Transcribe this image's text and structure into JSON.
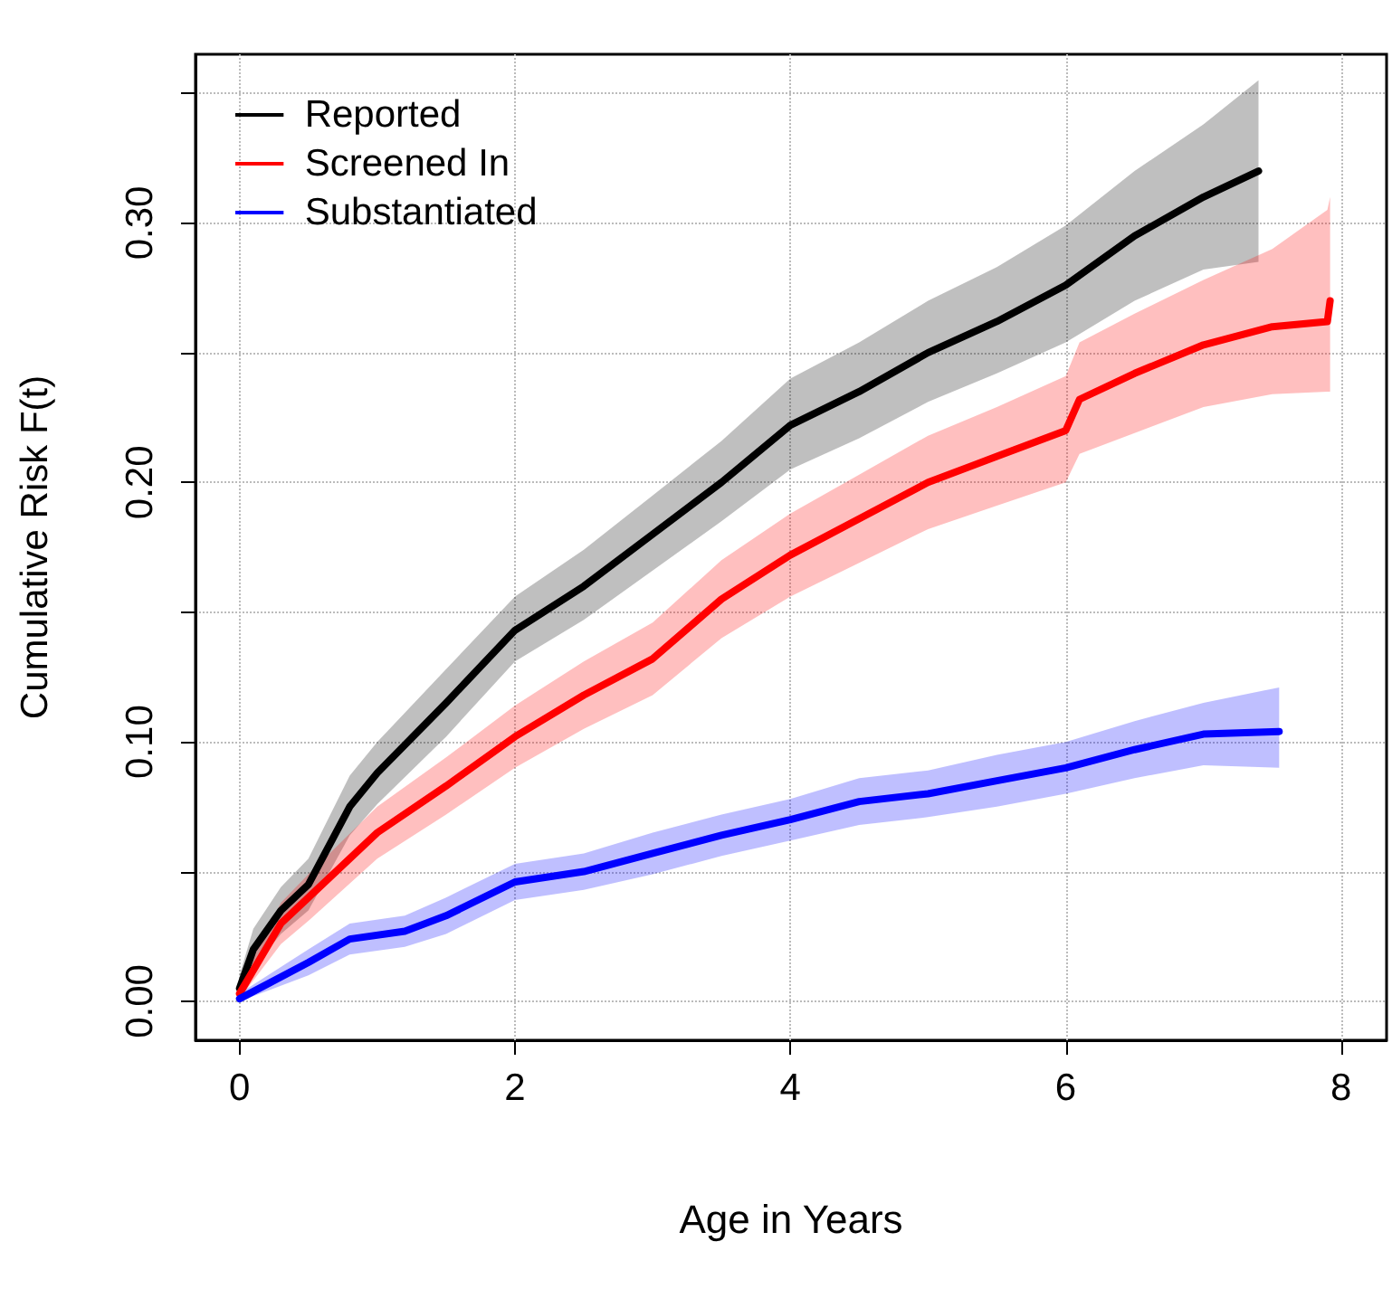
{
  "chart_data": {
    "type": "line",
    "xlabel": "Age in Years",
    "ylabel": "Cumulative Risk F(t)",
    "xlim": [
      -0.32,
      8.33
    ],
    "ylim": [
      -0.015,
      0.365
    ],
    "xticks": [
      0,
      2,
      4,
      6,
      8
    ],
    "yticks": [
      {
        "value": 0,
        "label": "0.00"
      },
      {
        "value": 0.05,
        "label": null
      },
      {
        "value": 0.1,
        "label": "0.10"
      },
      {
        "value": 0.15,
        "label": null
      },
      {
        "value": 0.2,
        "label": "0.20"
      },
      {
        "value": 0.25,
        "label": null
      },
      {
        "value": 0.3,
        "label": "0.30"
      },
      {
        "value": 0.35,
        "label": null
      }
    ],
    "grid": true,
    "legend": "top left",
    "line_style": "solid",
    "marker": "none",
    "series": [
      {
        "name": "Reported",
        "color": "#000000",
        "x": [
          0,
          0.1,
          0.3,
          0.5,
          0.8,
          1.0,
          1.5,
          2.0,
          2.5,
          3.0,
          3.5,
          4.0,
          4.5,
          5.0,
          5.5,
          6.0,
          6.5,
          7.0,
          7.4
        ],
        "values": [
          0.005,
          0.02,
          0.035,
          0.045,
          0.075,
          0.088,
          0.115,
          0.143,
          0.16,
          0.18,
          0.2,
          0.222,
          0.235,
          0.25,
          0.262,
          0.276,
          0.295,
          0.31,
          0.32
        ],
        "lower": [
          0.002,
          0.013,
          0.026,
          0.035,
          0.064,
          0.076,
          0.102,
          0.131,
          0.147,
          0.166,
          0.185,
          0.205,
          0.217,
          0.231,
          0.242,
          0.254,
          0.27,
          0.282,
          0.285
        ],
        "upper": [
          0.01,
          0.028,
          0.044,
          0.055,
          0.087,
          0.1,
          0.128,
          0.156,
          0.174,
          0.195,
          0.216,
          0.24,
          0.254,
          0.27,
          0.283,
          0.299,
          0.32,
          0.338,
          0.355
        ]
      },
      {
        "name": "Screened In",
        "color": "#ff0000",
        "x": [
          0,
          0.3,
          0.5,
          1.0,
          1.5,
          2.0,
          2.5,
          3.0,
          3.5,
          4.0,
          4.5,
          5.0,
          5.5,
          6.0,
          6.1,
          6.5,
          7.0,
          7.5,
          7.9,
          7.92
        ],
        "values": [
          0.003,
          0.03,
          0.04,
          0.065,
          0.083,
          0.102,
          0.118,
          0.132,
          0.155,
          0.172,
          0.186,
          0.2,
          0.21,
          0.22,
          0.232,
          0.242,
          0.253,
          0.26,
          0.262,
          0.27
        ],
        "lower": [
          0.001,
          0.022,
          0.031,
          0.055,
          0.072,
          0.09,
          0.105,
          0.118,
          0.14,
          0.156,
          0.169,
          0.182,
          0.191,
          0.2,
          0.211,
          0.219,
          0.229,
          0.234,
          0.235,
          0.235
        ],
        "upper": [
          0.006,
          0.038,
          0.049,
          0.075,
          0.094,
          0.114,
          0.131,
          0.146,
          0.17,
          0.188,
          0.203,
          0.218,
          0.229,
          0.241,
          0.254,
          0.265,
          0.278,
          0.29,
          0.305,
          0.31
        ]
      },
      {
        "name": "Substantiated",
        "color": "#0000ff",
        "x": [
          0,
          0.5,
          0.8,
          1.2,
          1.5,
          2.0,
          2.5,
          3.0,
          3.5,
          4.0,
          4.5,
          5.0,
          5.5,
          6.0,
          6.5,
          7.0,
          7.55
        ],
        "values": [
          0.001,
          0.015,
          0.024,
          0.027,
          0.033,
          0.046,
          0.05,
          0.057,
          0.064,
          0.07,
          0.077,
          0.08,
          0.085,
          0.09,
          0.097,
          0.103,
          0.104
        ],
        "lower": [
          0,
          0.01,
          0.018,
          0.021,
          0.026,
          0.039,
          0.043,
          0.049,
          0.056,
          0.062,
          0.068,
          0.071,
          0.075,
          0.08,
          0.086,
          0.091,
          0.09
        ],
        "upper": [
          0.003,
          0.02,
          0.03,
          0.033,
          0.04,
          0.053,
          0.057,
          0.065,
          0.072,
          0.078,
          0.086,
          0.089,
          0.095,
          0.1,
          0.108,
          0.115,
          0.121
        ]
      }
    ]
  }
}
